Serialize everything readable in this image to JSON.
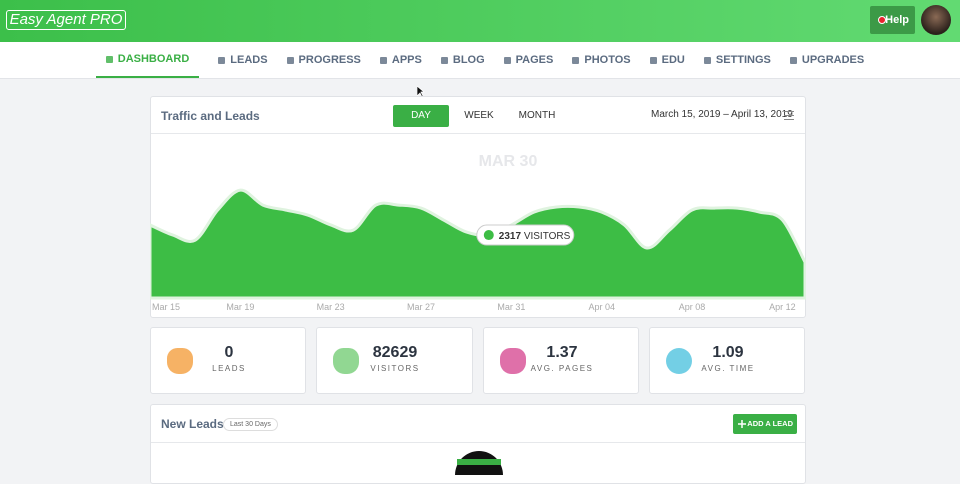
{
  "header": {
    "logo": "Easy Agent PRO",
    "help": "Help"
  },
  "nav": [
    "DASHBOARD",
    "LEADS",
    "PROGRESS",
    "APPS",
    "BLOG",
    "PAGES",
    "PHOTOS",
    "EDU",
    "SETTINGS",
    "UPGRADES"
  ],
  "traffic": {
    "title": "Traffic and Leads",
    "tabs": [
      "DAY",
      "WEEK",
      "MONTH"
    ],
    "date_range": "March 15, 2019 – April 13, 2019",
    "chart": {
      "type": "area",
      "color": "#3dbd45",
      "x": [
        "Mar 15",
        null,
        null,
        null,
        "Mar 19",
        null,
        null,
        null,
        "Mar 23",
        null,
        null,
        null,
        "Mar 27",
        null,
        null,
        null,
        "Mar 31",
        null,
        null,
        null,
        "Apr 04",
        null,
        null,
        null,
        "Apr 08",
        null,
        null,
        null,
        "Apr 12",
        null
      ],
      "values": [
        2690,
        2320,
        2130,
        3240,
        3970,
        3420,
        3240,
        3050,
        2690,
        2500,
        3420,
        3420,
        3310,
        2870,
        2430,
        2317,
        2690,
        3160,
        3350,
        3350,
        3160,
        2690,
        1840,
        2500,
        3240,
        3310,
        3310,
        3160,
        2870,
        1320
      ],
      "ylim": [
        0,
        6000
      ],
      "highlight_label": "MAR 30",
      "value_unit": "VISITORS"
    }
  },
  "stats": [
    {
      "value": 0,
      "label": "LEADS"
    },
    {
      "value": 82629,
      "label": "VISITORS"
    },
    {
      "value": 1.37,
      "label": "AVG. PAGES"
    },
    {
      "value": 1.09,
      "label": "AVG. TIME"
    }
  ],
  "new_leads": {
    "title": "New Leads",
    "badge": "Last 30 Days",
    "button": "ADD A LEAD"
  }
}
